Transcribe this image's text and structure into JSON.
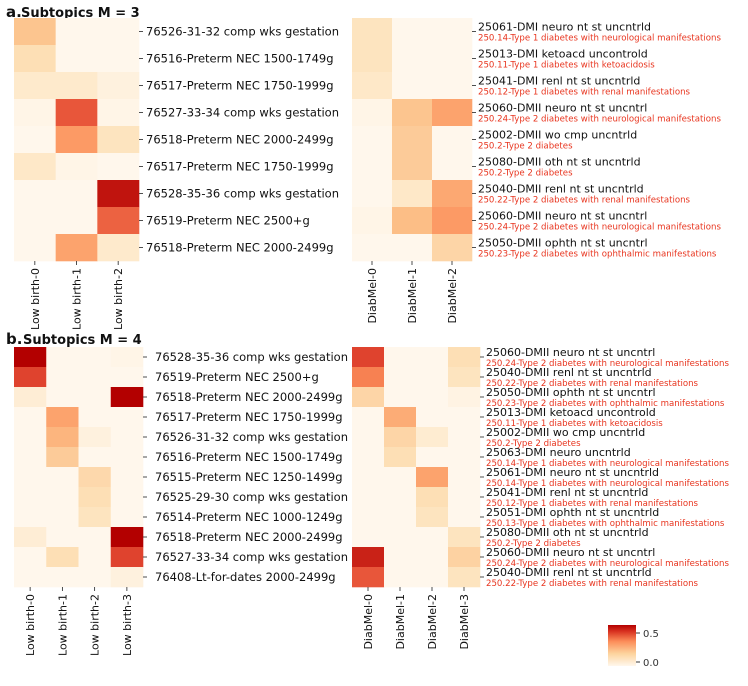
{
  "colors": {
    "low": "#fff7ec",
    "mid1": "#fdd49e",
    "mid2": "#fc8d59",
    "high": "#d7301f",
    "max": "#b30000",
    "text": "#111111",
    "label_red": "#e8351f"
  },
  "colorbar": {
    "max_label": "0.5",
    "min_label": "0.0"
  },
  "chart_data": [
    {
      "panel": "a",
      "panel_label": "a.",
      "panel_title": "Subtopics M = 3",
      "heatmaps": [
        {
          "name": "low-birth-m3",
          "type": "heatmap",
          "columns": [
            "Low birth-0",
            "Low birth-1",
            "Low birth-2"
          ],
          "rows": [
            {
              "label": "76526-31-32 comp wks gestation",
              "values": [
                0.2,
                0.0,
                0.0
              ]
            },
            {
              "label": "76516-Preterm NEC 1500-1749g",
              "values": [
                0.12,
                0.0,
                0.0
              ]
            },
            {
              "label": "76517-Preterm NEC 1750-1999g",
              "values": [
                0.07,
                0.07,
                0.03
              ]
            },
            {
              "label": "76527-33-34 comp wks gestation",
              "values": [
                0.01,
                0.42,
                0.01
              ]
            },
            {
              "label": "76518-Preterm NEC 2000-2499g",
              "values": [
                0.0,
                0.3,
                0.1
              ]
            },
            {
              "label": "76517-Preterm NEC 1750-1999g",
              "values": [
                0.08,
                0.01,
                0.0
              ]
            },
            {
              "label": "76528-35-36 comp wks gestation",
              "values": [
                0.0,
                0.0,
                0.52
              ]
            },
            {
              "label": "76519-Preterm NEC 2500+g",
              "values": [
                0.0,
                0.0,
                0.4
              ]
            },
            {
              "label": "76518-Preterm NEC 2000-2499g",
              "values": [
                0.0,
                0.28,
                0.07
              ]
            }
          ]
        },
        {
          "name": "diabmel-m3",
          "type": "heatmap",
          "columns": [
            "DiabMel-0",
            "DiabMel-1",
            "DiabMel-2"
          ],
          "rows": [
            {
              "label": "25061-DMI neuro nt st uncntrld",
              "sublabel": "250.14-Type 1 diabetes with neurological manifestations",
              "values": [
                0.1,
                0.0,
                0.0
              ]
            },
            {
              "label": "25013-DMI ketoacd uncontrold",
              "sublabel": "250.11-Type 1 diabetes with ketoacidosis",
              "values": [
                0.1,
                0.0,
                0.0
              ]
            },
            {
              "label": "25041-DMI renl nt st uncntrld",
              "sublabel": "250.12-Type 1 diabetes with renal manifestations",
              "values": [
                0.08,
                0.0,
                0.0
              ]
            },
            {
              "label": "25060-DMII neuro nt st uncntrl",
              "sublabel": "250.24-Type 2 diabetes with neurological manifestations",
              "values": [
                0.01,
                0.2,
                0.28
              ]
            },
            {
              "label": "25002-DMII wo cmp uncntrld",
              "sublabel": "250.2-Type 2 diabetes",
              "values": [
                0.0,
                0.18,
                0.0
              ]
            },
            {
              "label": "25080-DMII oth nt st uncntrld",
              "sublabel": "250.2-Type 2 diabetes",
              "values": [
                0.0,
                0.18,
                0.0
              ]
            },
            {
              "label": "25040-DMII renl nt st uncntrld",
              "sublabel": "250.22-Type 2 diabetes with renal manifestations",
              "values": [
                0.0,
                0.08,
                0.27
              ]
            },
            {
              "label": "25060-DMII neuro nt st uncntrl",
              "sublabel": "250.24-Type 2 diabetes with neurological manifestations",
              "values": [
                0.01,
                0.22,
                0.3
              ]
            },
            {
              "label": "25050-DMII ophth nt st uncntrl",
              "sublabel": "250.23-Type 2 diabetes with ophthalmic manifestations",
              "values": [
                0.0,
                0.0,
                0.15
              ]
            }
          ]
        }
      ]
    },
    {
      "panel": "b",
      "panel_label": "b.",
      "panel_title": "Subtopics M = 4",
      "heatmaps": [
        {
          "name": "low-birth-m4",
          "type": "heatmap",
          "columns": [
            "Low birth-0",
            "Low birth-1",
            "Low birth-2",
            "Low birth-3"
          ],
          "rows": [
            {
              "label": "76528-35-36 comp wks gestation",
              "values": [
                0.55,
                0.0,
                0.0,
                0.01
              ]
            },
            {
              "label": "76519-Preterm NEC 2500+g",
              "values": [
                0.45,
                0.0,
                0.0,
                0.0
              ]
            },
            {
              "label": "76518-Preterm NEC 2000-2499g",
              "values": [
                0.05,
                0.0,
                0.0,
                0.55
              ]
            },
            {
              "label": "76517-Preterm NEC 1750-1999g",
              "values": [
                0.0,
                0.28,
                0.0,
                0.0
              ]
            },
            {
              "label": "76526-31-32 comp wks gestation",
              "values": [
                0.0,
                0.24,
                0.03,
                0.0
              ]
            },
            {
              "label": "76516-Preterm NEC 1500-1749g",
              "values": [
                0.0,
                0.18,
                0.0,
                0.0
              ]
            },
            {
              "label": "76515-Preterm NEC 1250-1499g",
              "values": [
                0.0,
                0.0,
                0.14,
                0.0
              ]
            },
            {
              "label": "76525-29-30 comp wks gestation",
              "values": [
                0.0,
                0.0,
                0.12,
                0.0
              ]
            },
            {
              "label": "76514-Preterm NEC 1000-1249g",
              "values": [
                0.0,
                0.0,
                0.1,
                0.0
              ]
            },
            {
              "label": "76518-Preterm NEC 2000-2499g",
              "values": [
                0.05,
                0.0,
                0.0,
                0.58
              ]
            },
            {
              "label": "76527-33-34 comp wks gestation",
              "values": [
                0.0,
                0.12,
                0.0,
                0.45
              ]
            },
            {
              "label": "76408-Lt-for-dates 2000-2499g",
              "values": [
                0.0,
                0.0,
                0.0,
                0.03
              ]
            }
          ]
        },
        {
          "name": "diabmel-m4",
          "type": "heatmap",
          "columns": [
            "DiabMel-0",
            "DiabMel-1",
            "DiabMel-2",
            "DiabMel-3"
          ],
          "rows": [
            {
              "label": "25060-DMII neuro nt st uncntrl",
              "sublabel": "250.24-Type 2 diabetes with neurological manifestations",
              "values": [
                0.45,
                0.0,
                0.0,
                0.12
              ]
            },
            {
              "label": "25040-DMII renl nt st uncntrld",
              "sublabel": "250.22-Type 2 diabetes with renal manifestations",
              "values": [
                0.35,
                0.0,
                0.0,
                0.1
              ]
            },
            {
              "label": "25050-DMII ophth nt st uncntrl",
              "sublabel": "250.23-Type 2 diabetes with ophthalmic manifestations",
              "values": [
                0.15,
                0.0,
                0.0,
                0.02
              ]
            },
            {
              "label": "25013-DMI ketoacd uncontrold",
              "sublabel": "250.11-Type 1 diabetes with ketoacidosis",
              "values": [
                0.0,
                0.26,
                0.0,
                0.0
              ]
            },
            {
              "label": "25002-DMII wo cmp uncntrld",
              "sublabel": "250.2-Type 2 diabetes",
              "values": [
                0.0,
                0.15,
                0.06,
                0.0
              ]
            },
            {
              "label": "25063-DMI neuro uncntrld",
              "sublabel": "250.14-Type 1 diabetes with neurological manifestations",
              "values": [
                0.0,
                0.12,
                0.0,
                0.0
              ]
            },
            {
              "label": "25061-DMI neuro nt st uncntrld",
              "sublabel": "250.14-Type 1 diabetes with neurological manifestations",
              "values": [
                0.0,
                0.0,
                0.28,
                0.0
              ]
            },
            {
              "label": "25041-DMI renl nt st uncntrld",
              "sublabel": "250.12-Type 1 diabetes with renal manifestations",
              "values": [
                0.0,
                0.0,
                0.12,
                0.0
              ]
            },
            {
              "label": "25051-DMI ophth nt st uncntrld",
              "sublabel": "250.13-Type 1 diabetes with ophthalmic manifestations",
              "values": [
                0.0,
                0.0,
                0.1,
                0.0
              ]
            },
            {
              "label": "25080-DMII oth nt st uncntrld",
              "sublabel": "250.2-Type 2 diabetes",
              "values": [
                0.0,
                0.0,
                0.0,
                0.1
              ]
            },
            {
              "label": "25060-DMII neuro nt st uncntrl",
              "sublabel": "250.24-Type 2 diabetes with neurological manifestations",
              "values": [
                0.5,
                0.0,
                0.0,
                0.16
              ]
            },
            {
              "label": "25040-DMII renl nt st uncntrld",
              "sublabel": "250.22-Type 2 diabetes with renal manifestations",
              "values": [
                0.42,
                0.0,
                0.0,
                0.1
              ]
            }
          ]
        }
      ]
    }
  ]
}
